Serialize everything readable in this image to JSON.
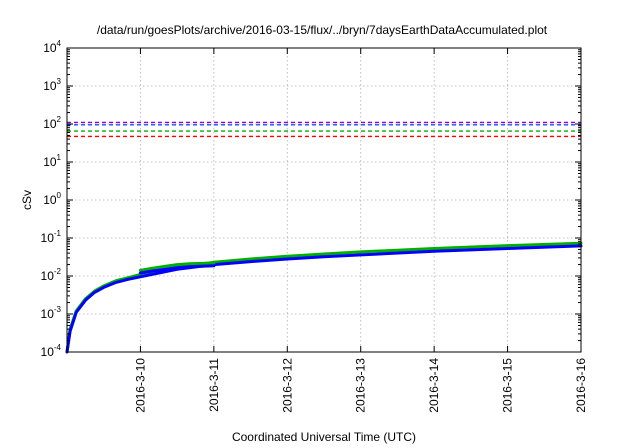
{
  "chart_data": {
    "type": "line",
    "title": "/data/run/goesPlots/archive/2016-03-15/flux/../bryn/7daysEarthDataAccumulated.plot",
    "xlabel": "Coordinated Universal Time (UTC)",
    "ylabel": "cSv",
    "y_scale": "log",
    "ylim": [
      0.0001,
      10000
    ],
    "xlim": [
      "2016-03-09 00:00",
      "2016-03-16 00:00"
    ],
    "grid": true,
    "legend": "none",
    "x_ticks": [
      "2016-3-10",
      "2016-3-11",
      "2016-3-12",
      "2016-3-13",
      "2016-3-14",
      "2016-3-15",
      "2016-3-16"
    ],
    "y_ticks": [
      {
        "value": 0.0001,
        "base": "10",
        "exp": "-4"
      },
      {
        "value": 0.001,
        "base": "10",
        "exp": "-3"
      },
      {
        "value": 0.01,
        "base": "10",
        "exp": "-2"
      },
      {
        "value": 0.1,
        "base": "10",
        "exp": "-1"
      },
      {
        "value": 1,
        "base": "10",
        "exp": "0"
      },
      {
        "value": 10,
        "base": "10",
        "exp": "1"
      },
      {
        "value": 100,
        "base": "10",
        "exp": "2"
      },
      {
        "value": 1000,
        "base": "10",
        "exp": "3"
      },
      {
        "value": 10000,
        "base": "10",
        "exp": "4"
      }
    ],
    "thresholds": [
      {
        "value": 110,
        "color": "#9400d3"
      },
      {
        "value": 95,
        "color": "#1e50ff"
      },
      {
        "value": 65,
        "color": "#00b000"
      },
      {
        "value": 47,
        "color": "#ff0000"
      }
    ],
    "series": [
      {
        "color": "#00b000",
        "x": [
          "2016-03-09 00:00",
          "2016-03-09 01:00",
          "2016-03-09 03:00",
          "2016-03-09 06:00",
          "2016-03-09 09:00",
          "2016-03-09 12:00",
          "2016-03-09 16:00",
          "2016-03-09 20:00",
          "2016-03-10 00:00",
          "2016-03-10 12:00",
          "2016-03-11 00:00",
          "2016-03-11 12:00",
          "2016-03-12 00:00",
          "2016-03-12 12:00",
          "2016-03-13 00:00",
          "2016-03-14 00:00",
          "2016-03-15 00:00",
          "2016-03-16 00:00"
        ],
        "values": [
          0.0001,
          0.0004,
          0.0012,
          0.0025,
          0.004,
          0.0055,
          0.0075,
          0.009,
          0.011,
          0.017,
          0.023,
          0.028,
          0.033,
          0.038,
          0.043,
          0.053,
          0.063,
          0.073
        ]
      },
      {
        "color": "#0000ff",
        "x": [
          "2016-03-09 00:00",
          "2016-03-09 01:00",
          "2016-03-09 03:00",
          "2016-03-09 06:00",
          "2016-03-09 09:00",
          "2016-03-09 12:00",
          "2016-03-09 16:00",
          "2016-03-09 20:00",
          "2016-03-10 00:00",
          "2016-03-10 12:00",
          "2016-03-11 00:00",
          "2016-03-11 12:00",
          "2016-03-12 00:00",
          "2016-03-12 12:00",
          "2016-03-13 00:00",
          "2016-03-14 00:00",
          "2016-03-15 00:00",
          "2016-03-16 00:00"
        ],
        "values": [
          0.0001,
          0.00035,
          0.0011,
          0.0023,
          0.0037,
          0.005,
          0.0068,
          0.0082,
          0.0095,
          0.015,
          0.02,
          0.024,
          0.028,
          0.032,
          0.036,
          0.045,
          0.053,
          0.062
        ]
      },
      {
        "color": "#00b000",
        "x": [
          "2016-03-10 00:00",
          "2016-03-10 04:00",
          "2016-03-10 08:00",
          "2016-03-10 12:00",
          "2016-03-10 16:00",
          "2016-03-11 00:00"
        ],
        "values": [
          0.014,
          0.016,
          0.018,
          0.02,
          0.021,
          0.022
        ]
      },
      {
        "color": "#0000ff",
        "x": [
          "2016-03-10 00:00",
          "2016-03-10 04:00",
          "2016-03-10 08:00",
          "2016-03-10 12:00",
          "2016-03-10 16:00",
          "2016-03-11 00:00"
        ],
        "values": [
          0.012,
          0.0135,
          0.015,
          0.0165,
          0.0175,
          0.0185
        ]
      }
    ]
  }
}
